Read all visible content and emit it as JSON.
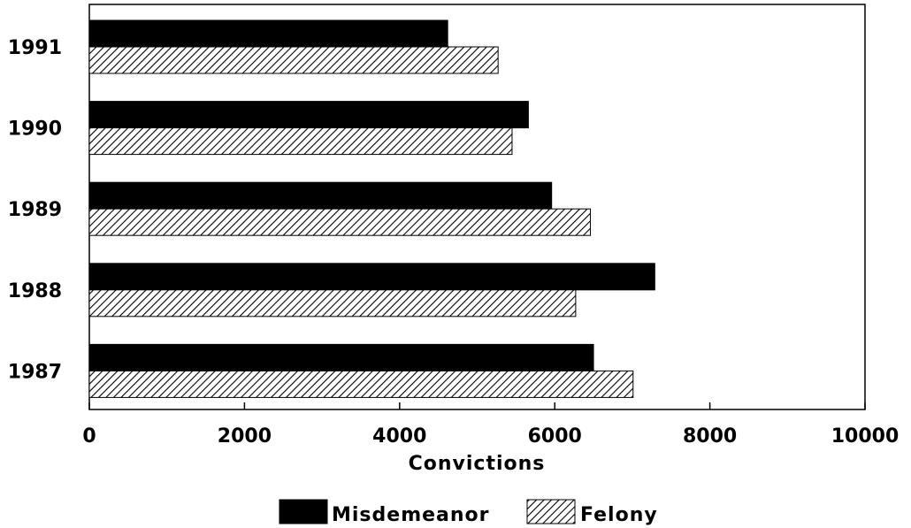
{
  "chart_data": {
    "type": "bar",
    "orientation": "horizontal",
    "categories": [
      "1991",
      "1990",
      "1989",
      "1988",
      "1987"
    ],
    "series": [
      {
        "name": "Misdemeanor",
        "values": [
          4620,
          5660,
          5960,
          7290,
          6500
        ],
        "color": "#000000",
        "pattern": "solid"
      },
      {
        "name": "Felony",
        "values": [
          5270,
          5450,
          6460,
          6270,
          7010
        ],
        "color": "#000000",
        "pattern": "diagonal-hatch"
      }
    ],
    "title": "",
    "xlabel": "Convictions",
    "ylabel": "",
    "xlim": [
      0,
      10000
    ],
    "xticks": [
      "0",
      "2000",
      "4000",
      "6000",
      "8000",
      "10000"
    ],
    "grid": false,
    "legend_placement": "bottom-center"
  }
}
